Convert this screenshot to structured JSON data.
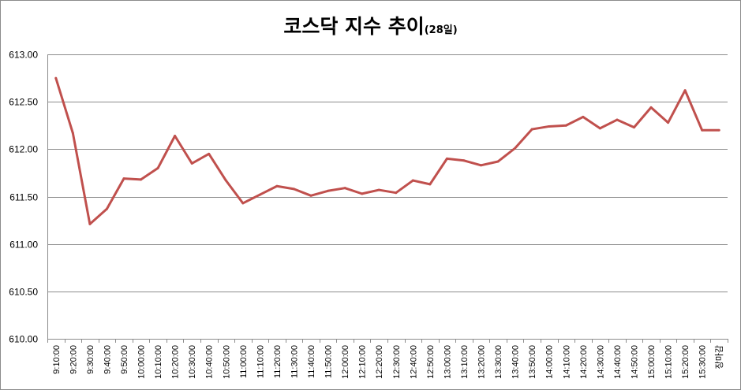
{
  "chart_data": {
    "type": "line",
    "title": "코스닥 지수 추이",
    "subtitle": "(28일)",
    "xlabel": "",
    "ylabel": "",
    "ylim": [
      610.0,
      613.0
    ],
    "y_ticks": [
      "613.00",
      "612.50",
      "612.00",
      "611.50",
      "611.00",
      "610.50",
      "610.00"
    ],
    "grid": true,
    "line_color": "#c0504d",
    "categories": [
      "9:10:00",
      "9:20:00",
      "9:30:00",
      "9:40:00",
      "9:50:00",
      "10:00:00",
      "10:10:00",
      "10:20:00",
      "10:30:00",
      "10:40:00",
      "10:50:00",
      "11:00:00",
      "11:10:00",
      "11:20:00",
      "11:30:00",
      "11:40:00",
      "11:50:00",
      "12:00:00",
      "12:10:00",
      "12:20:00",
      "12:30:00",
      "12:40:00",
      "12:50:00",
      "13:00:00",
      "13:10:00",
      "13:20:00",
      "13:30:00",
      "13:40:00",
      "13:50:00",
      "14:00:00",
      "14:10:00",
      "14:20:00",
      "14:30:00",
      "14:40:00",
      "14:50:00",
      "15:00:00",
      "15:10:00",
      "15:20:00",
      "15:30:00",
      "장마감"
    ],
    "values": [
      612.75,
      612.17,
      611.21,
      611.37,
      611.69,
      611.68,
      611.8,
      612.14,
      611.85,
      611.95,
      611.67,
      611.43,
      611.52,
      611.61,
      611.58,
      611.51,
      611.56,
      611.59,
      611.53,
      611.57,
      611.54,
      611.67,
      611.63,
      611.9,
      611.88,
      611.83,
      611.87,
      612.01,
      612.21,
      612.24,
      612.25,
      612.34,
      612.22,
      612.31,
      612.23,
      612.44,
      612.28,
      612.62,
      612.2,
      612.2
    ]
  }
}
